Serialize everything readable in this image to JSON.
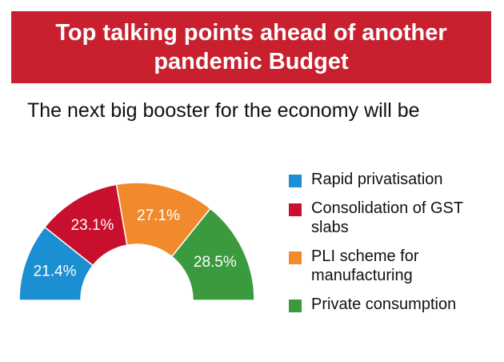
{
  "chart_data": {
    "type": "pie",
    "shape": "half-donut",
    "title": "Top talking points ahead of another pandemic Budget",
    "subtitle": "The next big booster for the economy will be",
    "categories": [
      "Rapid privatisation",
      "Consolidation of GST slabs",
      "PLI scheme for manufacturing",
      "Private consumption"
    ],
    "values": [
      21.4,
      23.1,
      27.1,
      28.5
    ],
    "value_labels": [
      "21.4%",
      "23.1%",
      "27.1%",
      "28.5%"
    ],
    "colors": [
      "#1b8fd2",
      "#c8102e",
      "#f08a2c",
      "#3b9a3e"
    ],
    "legend": "right"
  }
}
